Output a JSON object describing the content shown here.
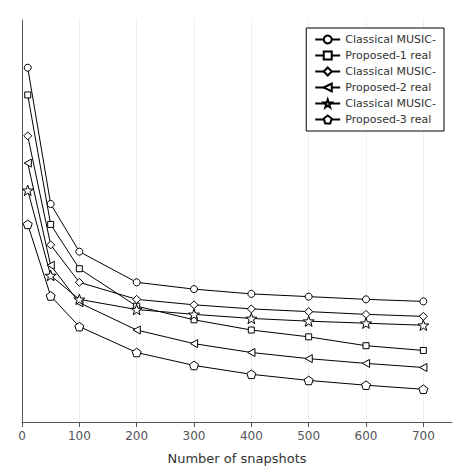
{
  "chart_data": {
    "type": "line",
    "xlabel": "Number of snapshots",
    "x": [
      10,
      50,
      100,
      200,
      300,
      400,
      500,
      600,
      700
    ],
    "series": [
      {
        "name": "Classical MUSIC-",
        "marker": "circle",
        "values": [
          0.58,
          0.38,
          0.31,
          0.265,
          0.255,
          0.248,
          0.244,
          0.24,
          0.237
        ]
      },
      {
        "name": "Proposed-1 real",
        "marker": "square",
        "values": [
          0.54,
          0.35,
          0.285,
          0.23,
          0.21,
          0.195,
          0.185,
          0.172,
          0.165
        ]
      },
      {
        "name": "Classical MUSIC-",
        "marker": "diamond",
        "values": [
          0.48,
          0.32,
          0.265,
          0.24,
          0.232,
          0.226,
          0.222,
          0.218,
          0.215
        ]
      },
      {
        "name": "Proposed-2 real",
        "marker": "triangle-left",
        "values": [
          0.44,
          0.29,
          0.235,
          0.195,
          0.175,
          0.162,
          0.153,
          0.146,
          0.14
        ]
      },
      {
        "name": "Classical MUSIC-",
        "marker": "star",
        "values": [
          0.4,
          0.275,
          0.24,
          0.225,
          0.218,
          0.212,
          0.208,
          0.205,
          0.202
        ]
      },
      {
        "name": "Proposed-3 real",
        "marker": "pentagon",
        "values": [
          0.35,
          0.245,
          0.2,
          0.162,
          0.143,
          0.13,
          0.121,
          0.114,
          0.108
        ]
      }
    ],
    "color": "#000000",
    "xlim": [
      0,
      750
    ],
    "ylim": [
      0.06,
      0.65
    ],
    "xticks": [
      0,
      100,
      200,
      300,
      400,
      500,
      600,
      700
    ],
    "yticks": [],
    "grid": true,
    "legend": "upper right",
    "tick_labels": "x"
  }
}
